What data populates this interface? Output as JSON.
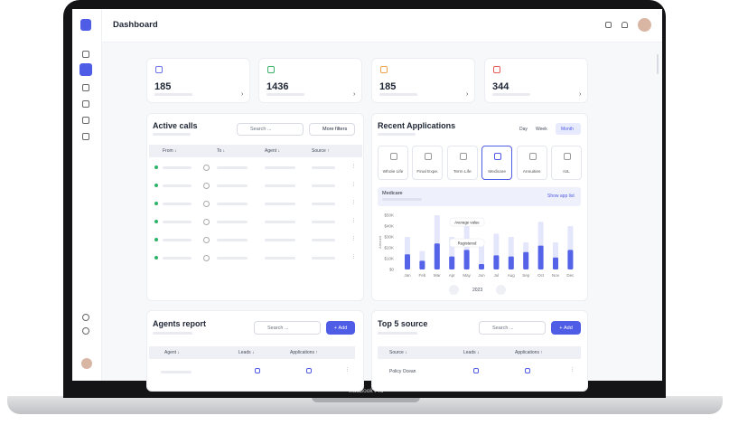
{
  "header": {
    "title": "Dashboard"
  },
  "stats": [
    185,
    1436,
    185,
    344
  ],
  "active_calls": {
    "title": "Active calls",
    "search": "Search ...",
    "filter_button": "More filters",
    "columns": [
      "From ↓",
      "To ↓",
      "Agent ↓",
      "Source ↑"
    ]
  },
  "recent_applications": {
    "title": "Recent Applications",
    "periods": [
      "Day",
      "Week",
      "Month"
    ],
    "products": [
      "Whole Life",
      "Final Expe.",
      "Term Life",
      "Medicare",
      "Annuities",
      "IUL"
    ],
    "show_list": "Show app list",
    "year": "2023"
  },
  "chart_data": {
    "type": "bar",
    "title": "Medicare",
    "y_label": "Amount",
    "categories": [
      "Jan",
      "Feb",
      "Mar",
      "Apr",
      "May",
      "Jun",
      "Jul",
      "Aug",
      "Sep",
      "Oct",
      "Nov",
      "Dec"
    ],
    "series": [
      {
        "name": "Average value",
        "color": "#e4e7fb",
        "values": [
          30000,
          17000,
          50000,
          30000,
          42000,
          25000,
          33000,
          30000,
          25000,
          44000,
          25000,
          40000
        ]
      },
      {
        "name": "Registered",
        "color": "#5563e8",
        "values": [
          14000,
          8000,
          24000,
          12000,
          18000,
          5000,
          13000,
          12000,
          16000,
          22000,
          11000,
          18000
        ]
      }
    ],
    "ylim": [
      0,
      50000
    ],
    "yticks": [
      {
        "value": 0,
        "label": "$0"
      },
      {
        "value": 10000,
        "label": "$10K"
      },
      {
        "value": 20000,
        "label": "$20K"
      },
      {
        "value": 30000,
        "label": "$30K"
      },
      {
        "value": 40000,
        "label": "$40K"
      },
      {
        "value": 50000,
        "label": "$50K"
      }
    ]
  },
  "agents_report": {
    "title": "Agents report",
    "search": "Search ...",
    "add_button": "Add",
    "columns": [
      "Agent ↓",
      "Leads ↓",
      "Applications ↑"
    ]
  },
  "top_sources": {
    "title": "Top 5 source",
    "search": "Search ...",
    "add_button": "Add",
    "columns": [
      "Source ↓",
      "Leads ↓",
      "Applications ↑"
    ],
    "rows": [
      "Policy Ocean"
    ]
  },
  "device_label": "MacBook Pro"
}
